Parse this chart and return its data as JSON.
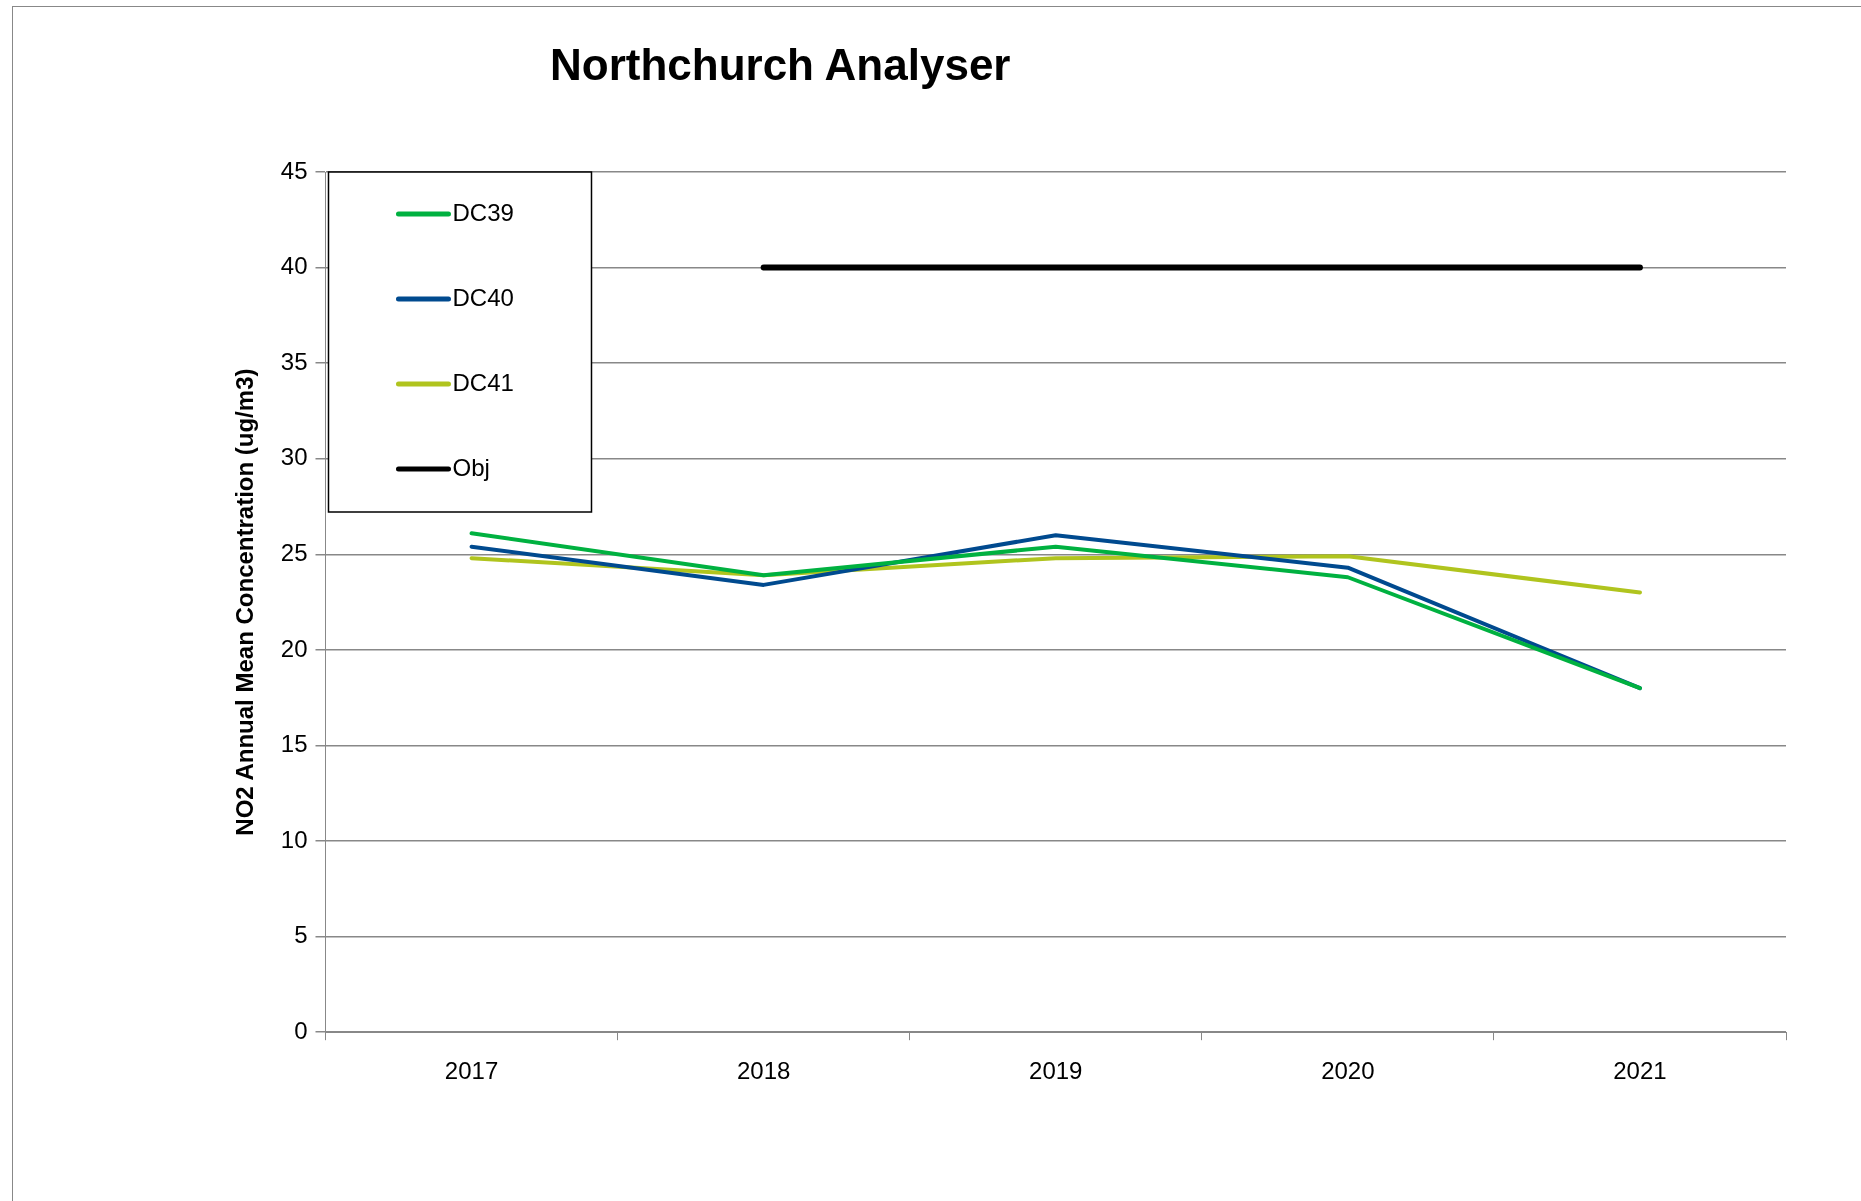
{
  "chart_data": {
    "type": "line",
    "title": "Northchurch Analyser",
    "ylabel": "NO2 Annual Mean Concentration (ug/m3)",
    "categories": [
      "2017",
      "2018",
      "2019",
      "2020",
      "2021"
    ],
    "series": [
      {
        "name": "DC39",
        "color": "#00b140",
        "values": [
          26.1,
          23.9,
          25.4,
          23.8,
          18.0
        ]
      },
      {
        "name": "DC40",
        "color": "#004a8f",
        "values": [
          25.4,
          23.4,
          26.0,
          24.3,
          18.0
        ]
      },
      {
        "name": "DC41",
        "color": "#b0c41e",
        "values": [
          24.8,
          23.9,
          24.8,
          24.9,
          23.0
        ]
      },
      {
        "name": "Obj",
        "color": "#000000",
        "values": [
          null,
          40,
          40,
          40,
          40
        ]
      }
    ],
    "ylim": [
      0,
      45
    ],
    "yticks": [
      0,
      5,
      10,
      15,
      20,
      25,
      30,
      35,
      40,
      45
    ],
    "grid": "y",
    "legend": "top left",
    "marker": "none",
    "line_style": "solid"
  }
}
